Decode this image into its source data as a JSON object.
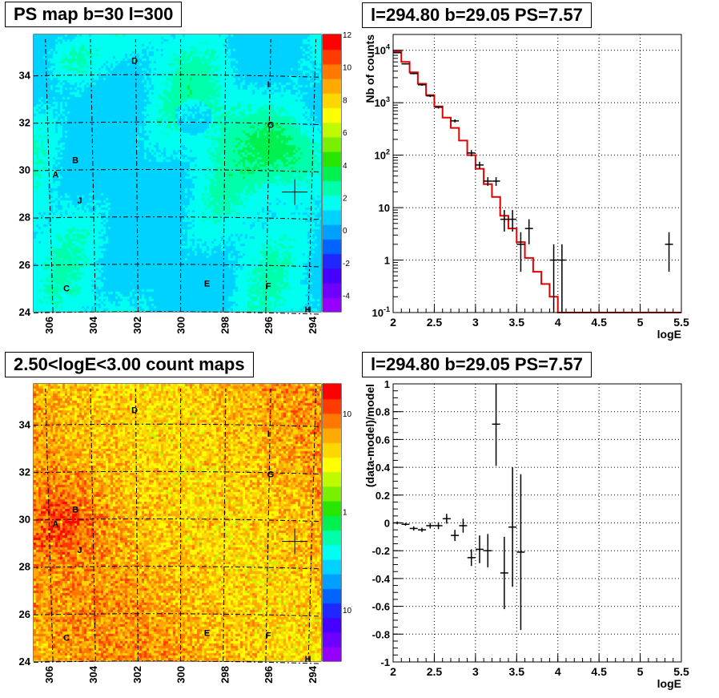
{
  "panels": {
    "ps_map": {
      "title": "PS map b=30 l=300",
      "x_ticks": [
        "306",
        "304",
        "302",
        "300",
        "298",
        "296",
        "294"
      ],
      "y_ticks": [
        "24",
        "26",
        "28",
        "30",
        "32",
        "34"
      ],
      "colorbar_ticks": [
        "12",
        "10",
        "8",
        "6",
        "4",
        "2",
        "0",
        "-2",
        "-4"
      ],
      "labels": [
        "D",
        "I",
        "G",
        "B",
        "A",
        "J",
        "C",
        "E",
        "F",
        "H"
      ]
    },
    "count_map": {
      "title": "2.50<logE<3.00 count maps",
      "x_ticks": [
        "306",
        "304",
        "302",
        "300",
        "298",
        "296",
        "294"
      ],
      "y_ticks": [
        "24",
        "26",
        "28",
        "30",
        "32",
        "34"
      ],
      "colorbar_ticks": [
        "10",
        "1",
        "10^-1"
      ],
      "labels": [
        "D",
        "I",
        "G",
        "B",
        "A",
        "J",
        "C",
        "E",
        "F",
        "H"
      ]
    },
    "spectrum": {
      "title": "l=294.80 b=29.05 PS=7.57",
      "xlabel": "logE",
      "ylabel": "Nb of counts",
      "x_ticks": [
        "2",
        "2.5",
        "3",
        "3.5",
        "4",
        "4.5",
        "5",
        "5.5"
      ],
      "y_ticks": [
        "10^-1",
        "1",
        "10",
        "10^2",
        "10^3",
        "10^4"
      ]
    },
    "residual": {
      "title": "l=294.80 b=29.05 PS=7.57",
      "xlabel": "logE",
      "ylabel": "(data-model)/model",
      "x_ticks": [
        "2",
        "2.5",
        "3",
        "3.5",
        "4",
        "4.5",
        "5",
        "5.5"
      ],
      "y_ticks": [
        "1",
        "0.8",
        "0.6",
        "0.4",
        "0.2",
        "0",
        "-0.2",
        "-0.4",
        "-0.6",
        "-0.8",
        "-1"
      ]
    }
  },
  "chart_data": [
    {
      "type": "heatmap",
      "title": "PS map b=30 l=300",
      "xlim": [
        306.7,
        293.6
      ],
      "ylim": [
        24,
        35.7
      ],
      "zlim": [
        -5,
        12
      ],
      "marker": {
        "l": 294.8,
        "b": 29.05
      },
      "sources": [
        {
          "name": "D",
          "l": 302.1,
          "b": 34.6
        },
        {
          "name": "I",
          "l": 296.0,
          "b": 33.6
        },
        {
          "name": "G",
          "l": 295.9,
          "b": 31.9
        },
        {
          "name": "B",
          "l": 304.8,
          "b": 30.4
        },
        {
          "name": "A",
          "l": 305.7,
          "b": 29.8
        },
        {
          "name": "J",
          "l": 304.6,
          "b": 28.7
        },
        {
          "name": "C",
          "l": 305.2,
          "b": 25.0
        },
        {
          "name": "E",
          "l": 298.8,
          "b": 25.2
        },
        {
          "name": "F",
          "l": 296.0,
          "b": 25.1
        },
        {
          "name": "H",
          "l": 294.2,
          "b": 24.1
        }
      ]
    },
    {
      "type": "heatmap",
      "title": "2.50<logE<3.00 count maps",
      "xlim": [
        306.7,
        293.6
      ],
      "ylim": [
        24,
        35.7
      ],
      "scale": "log",
      "zlim": [
        0.03,
        20
      ]
    },
    {
      "type": "line",
      "title": "l=294.80 b=29.05 PS=7.57",
      "xlabel": "logE",
      "ylabel": "Nb of counts",
      "xlim": [
        2,
        5.5
      ],
      "ylim": [
        0.1,
        20000
      ],
      "yscale": "log",
      "grid": true,
      "data_points": [
        {
          "x": 2.05,
          "y": 9000,
          "yerr_lo": 8800,
          "yerr_hi": 9200
        },
        {
          "x": 2.15,
          "y": 5500,
          "yerr_lo": 5350,
          "yerr_hi": 5650
        },
        {
          "x": 2.25,
          "y": 3600,
          "yerr_lo": 3480,
          "yerr_hi": 3720
        },
        {
          "x": 2.35,
          "y": 2200,
          "yerr_lo": 2100,
          "yerr_hi": 2300
        },
        {
          "x": 2.45,
          "y": 1350,
          "yerr_lo": 1280,
          "yerr_hi": 1420
        },
        {
          "x": 2.55,
          "y": 820,
          "yerr_lo": 770,
          "yerr_hi": 870
        },
        {
          "x": 2.75,
          "y": 450,
          "yerr_lo": 420,
          "yerr_hi": 480
        },
        {
          "x": 2.95,
          "y": 110,
          "yerr_lo": 95,
          "yerr_hi": 125
        },
        {
          "x": 3.05,
          "y": 65,
          "yerr_lo": 55,
          "yerr_hi": 75
        },
        {
          "x": 3.15,
          "y": 32,
          "yerr_lo": 26,
          "yerr_hi": 38
        },
        {
          "x": 3.25,
          "y": 32,
          "yerr_lo": 26,
          "yerr_hi": 38
        },
        {
          "x": 3.35,
          "y": 6,
          "yerr_lo": 3.5,
          "yerr_hi": 9
        },
        {
          "x": 3.45,
          "y": 6,
          "yerr_lo": 3.5,
          "yerr_hi": 9
        },
        {
          "x": 3.55,
          "y": 2,
          "yerr_lo": 0.6,
          "yerr_hi": 3.4
        },
        {
          "x": 3.65,
          "y": 4,
          "yerr_lo": 2,
          "yerr_hi": 6
        },
        {
          "x": 3.95,
          "y": 1,
          "yerr_lo": 0.1,
          "yerr_hi": 2
        },
        {
          "x": 4.05,
          "y": 1,
          "yerr_lo": 0.1,
          "yerr_hi": 2
        },
        {
          "x": 5.35,
          "y": 2,
          "yerr_lo": 0.6,
          "yerr_hi": 3.4
        }
      ],
      "model_step": {
        "edges": [
          2.0,
          2.1,
          2.2,
          2.3,
          2.4,
          2.5,
          2.6,
          2.7,
          2.8,
          2.9,
          3.0,
          3.1,
          3.2,
          3.3,
          3.4,
          3.5,
          3.6,
          3.7,
          3.8,
          3.9,
          4.0,
          5.5
        ],
        "values": [
          9500,
          6000,
          3800,
          2300,
          1400,
          850,
          520,
          330,
          190,
          100,
          55,
          28,
          16,
          7,
          4,
          2.2,
          1.1,
          0.6,
          0.35,
          0.2,
          0.1
        ]
      }
    },
    {
      "type": "scatter",
      "title": "l=294.80 b=29.05 PS=7.57",
      "xlabel": "logE",
      "ylabel": "(data-model)/model",
      "xlim": [
        2,
        5.5
      ],
      "ylim": [
        -1,
        1
      ],
      "grid": true,
      "data_points": [
        {
          "x": 2.05,
          "y": 0.0,
          "yerr": 0.01
        },
        {
          "x": 2.15,
          "y": -0.01,
          "yerr": 0.01
        },
        {
          "x": 2.25,
          "y": -0.04,
          "yerr": 0.015
        },
        {
          "x": 2.35,
          "y": -0.05,
          "yerr": 0.015
        },
        {
          "x": 2.45,
          "y": -0.02,
          "yerr": 0.02
        },
        {
          "x": 2.55,
          "y": -0.02,
          "yerr": 0.025
        },
        {
          "x": 2.65,
          "y": 0.03,
          "yerr": 0.035
        },
        {
          "x": 2.75,
          "y": -0.09,
          "yerr": 0.04
        },
        {
          "x": 2.85,
          "y": -0.02,
          "yerr": 0.05
        },
        {
          "x": 2.95,
          "y": -0.25,
          "yerr": 0.06
        },
        {
          "x": 3.05,
          "y": -0.19,
          "yerr": 0.1
        },
        {
          "x": 3.15,
          "y": -0.2,
          "yerr": 0.12
        },
        {
          "x": 3.25,
          "y": 0.71,
          "yerr": 0.3
        },
        {
          "x": 3.35,
          "y": -0.36,
          "yerr": 0.26
        },
        {
          "x": 3.45,
          "y": -0.03,
          "yerr": 0.43
        },
        {
          "x": 3.55,
          "y": -0.21,
          "yerr": 0.56
        }
      ]
    }
  ]
}
